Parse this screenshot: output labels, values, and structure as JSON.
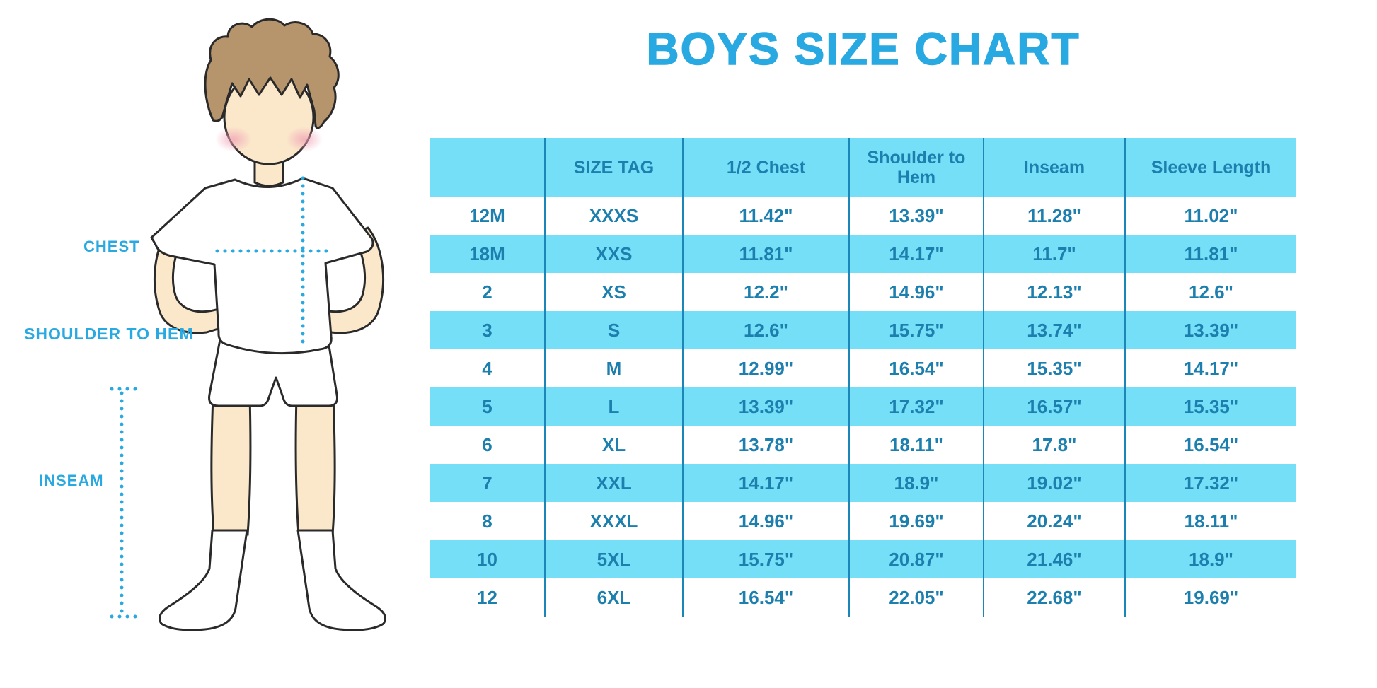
{
  "title": "BOYS SIZE CHART",
  "figure": {
    "illustration": "cartoon boy in white t-shirt and shorts with measurement guides",
    "labels": {
      "chest": "CHEST",
      "shoulder_to_hem": "SHOULDER TO HEM",
      "inseam": "INSEAM"
    }
  },
  "colors": {
    "accent": "#29A9E1",
    "stripe": "#74DFF7",
    "table_text": "#1C7FAD",
    "divider": "#1B87B8",
    "hair": "#B6946C",
    "skin": "#FBE8CB"
  },
  "chart_data": {
    "type": "table",
    "title": "BOYS SIZE CHART",
    "columns": [
      "",
      "SIZE TAG",
      "1/2 Chest",
      "Shoulder to Hem",
      "Inseam",
      "Sleeve Length"
    ],
    "rows": [
      [
        "12M",
        "XXXS",
        "11.42\"",
        "13.39\"",
        "11.28\"",
        "11.02\""
      ],
      [
        "18M",
        "XXS",
        "11.81\"",
        "14.17\"",
        "11.7\"",
        "11.81\""
      ],
      [
        "2",
        "XS",
        "12.2\"",
        "14.96\"",
        "12.13\"",
        "12.6\""
      ],
      [
        "3",
        "S",
        "12.6\"",
        "15.75\"",
        "13.74\"",
        "13.39\""
      ],
      [
        "4",
        "M",
        "12.99\"",
        "16.54\"",
        "15.35\"",
        "14.17\""
      ],
      [
        "5",
        "L",
        "13.39\"",
        "17.32\"",
        "16.57\"",
        "15.35\""
      ],
      [
        "6",
        "XL",
        "13.78\"",
        "18.11\"",
        "17.8\"",
        "16.54\""
      ],
      [
        "7",
        "XXL",
        "14.17\"",
        "18.9\"",
        "19.02\"",
        "17.32\""
      ],
      [
        "8",
        "XXXL",
        "14.96\"",
        "19.69\"",
        "20.24\"",
        "18.11\""
      ],
      [
        "10",
        "5XL",
        "15.75\"",
        "20.87\"",
        "21.46\"",
        "18.9\""
      ],
      [
        "12",
        "6XL",
        "16.54\"",
        "22.05\"",
        "22.68\"",
        "19.69\""
      ]
    ],
    "units": "inches",
    "row_striping": "alternating white / light blue, header light blue"
  }
}
